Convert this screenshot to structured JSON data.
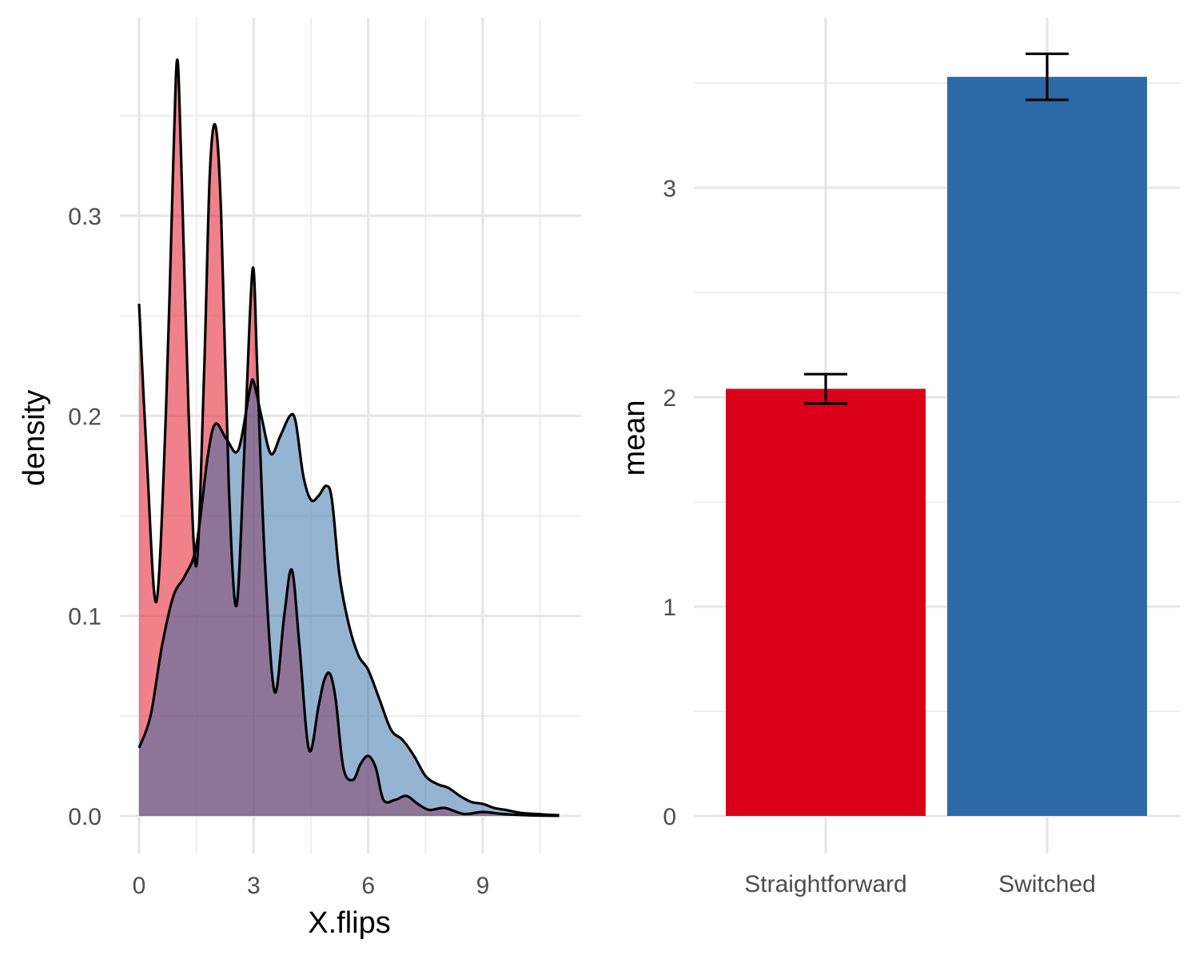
{
  "chart_data": [
    {
      "type": "area",
      "subtype": "density",
      "xlabel": "X.flips",
      "ylabel": "density",
      "xlim": [
        0,
        11
      ],
      "ylim": [
        0,
        0.38
      ],
      "x_ticks": [
        0,
        3,
        6,
        9
      ],
      "x_tick_labels": [
        "0",
        "3",
        "6",
        "9"
      ],
      "y_ticks": [
        0,
        0.1,
        0.2,
        0.3
      ],
      "y_tick_labels": [
        "0.0",
        "0.1",
        "0.2",
        "0.3"
      ],
      "grid": true,
      "legend": "none",
      "series": [
        {
          "color": "#e41a2c",
          "opacity": 0.55,
          "x": [
            0,
            0.2,
            0.45,
            0.7,
            0.9,
            1.0,
            1.1,
            1.3,
            1.5,
            1.7,
            1.85,
            2.0,
            2.15,
            2.35,
            2.55,
            2.75,
            2.9,
            3.0,
            3.1,
            3.3,
            3.55,
            3.8,
            4.0,
            4.2,
            4.45,
            4.7,
            4.85,
            5.0,
            5.15,
            5.35,
            5.6,
            5.8,
            6.0,
            6.2,
            6.4,
            6.7,
            7.0,
            7.3,
            7.6,
            8.0,
            8.5,
            9.0,
            9.5,
            10.0,
            10.5,
            11.0
          ],
          "y": [
            0.256,
            0.18,
            0.107,
            0.2,
            0.33,
            0.378,
            0.33,
            0.2,
            0.125,
            0.22,
            0.32,
            0.345,
            0.3,
            0.165,
            0.105,
            0.18,
            0.25,
            0.273,
            0.22,
            0.125,
            0.062,
            0.1,
            0.123,
            0.085,
            0.033,
            0.055,
            0.068,
            0.071,
            0.058,
            0.024,
            0.018,
            0.026,
            0.03,
            0.024,
            0.008,
            0.008,
            0.01,
            0.006,
            0.003,
            0.004,
            0.001,
            0.002,
            0.001,
            0.0005,
            0.0002,
            0.0001
          ]
        },
        {
          "color": "#2c69a6",
          "opacity": 0.5,
          "x": [
            0,
            0.3,
            0.6,
            0.9,
            1.2,
            1.5,
            1.8,
            2.0,
            2.3,
            2.6,
            2.9,
            3.0,
            3.2,
            3.45,
            3.7,
            3.95,
            4.1,
            4.3,
            4.5,
            4.7,
            4.9,
            5.05,
            5.25,
            5.5,
            5.75,
            6.0,
            6.3,
            6.6,
            6.9,
            7.2,
            7.5,
            7.8,
            8.1,
            8.4,
            8.7,
            9.0,
            9.3,
            9.6,
            10.0,
            10.4,
            10.8,
            11.0
          ],
          "y": [
            0.034,
            0.05,
            0.085,
            0.11,
            0.12,
            0.135,
            0.18,
            0.196,
            0.188,
            0.183,
            0.213,
            0.217,
            0.2,
            0.181,
            0.19,
            0.2,
            0.197,
            0.17,
            0.158,
            0.16,
            0.165,
            0.158,
            0.12,
            0.095,
            0.08,
            0.073,
            0.058,
            0.043,
            0.038,
            0.03,
            0.02,
            0.016,
            0.014,
            0.01,
            0.007,
            0.006,
            0.004,
            0.003,
            0.0015,
            0.001,
            0.0005,
            0.0004
          ]
        }
      ]
    },
    {
      "type": "bar",
      "xlabel": "",
      "ylabel": "mean",
      "categories": [
        "Straightforward",
        "Switched"
      ],
      "values": [
        2.04,
        3.53
      ],
      "error_low": [
        1.97,
        3.42
      ],
      "error_high": [
        2.11,
        3.64
      ],
      "colors": [
        "#da001a",
        "#2d69a6"
      ],
      "ylim": [
        0,
        3.7
      ],
      "y_ticks": [
        0,
        1,
        2,
        3
      ],
      "y_tick_labels": [
        "0",
        "1",
        "2",
        "3"
      ],
      "grid": true,
      "legend": "none"
    }
  ]
}
